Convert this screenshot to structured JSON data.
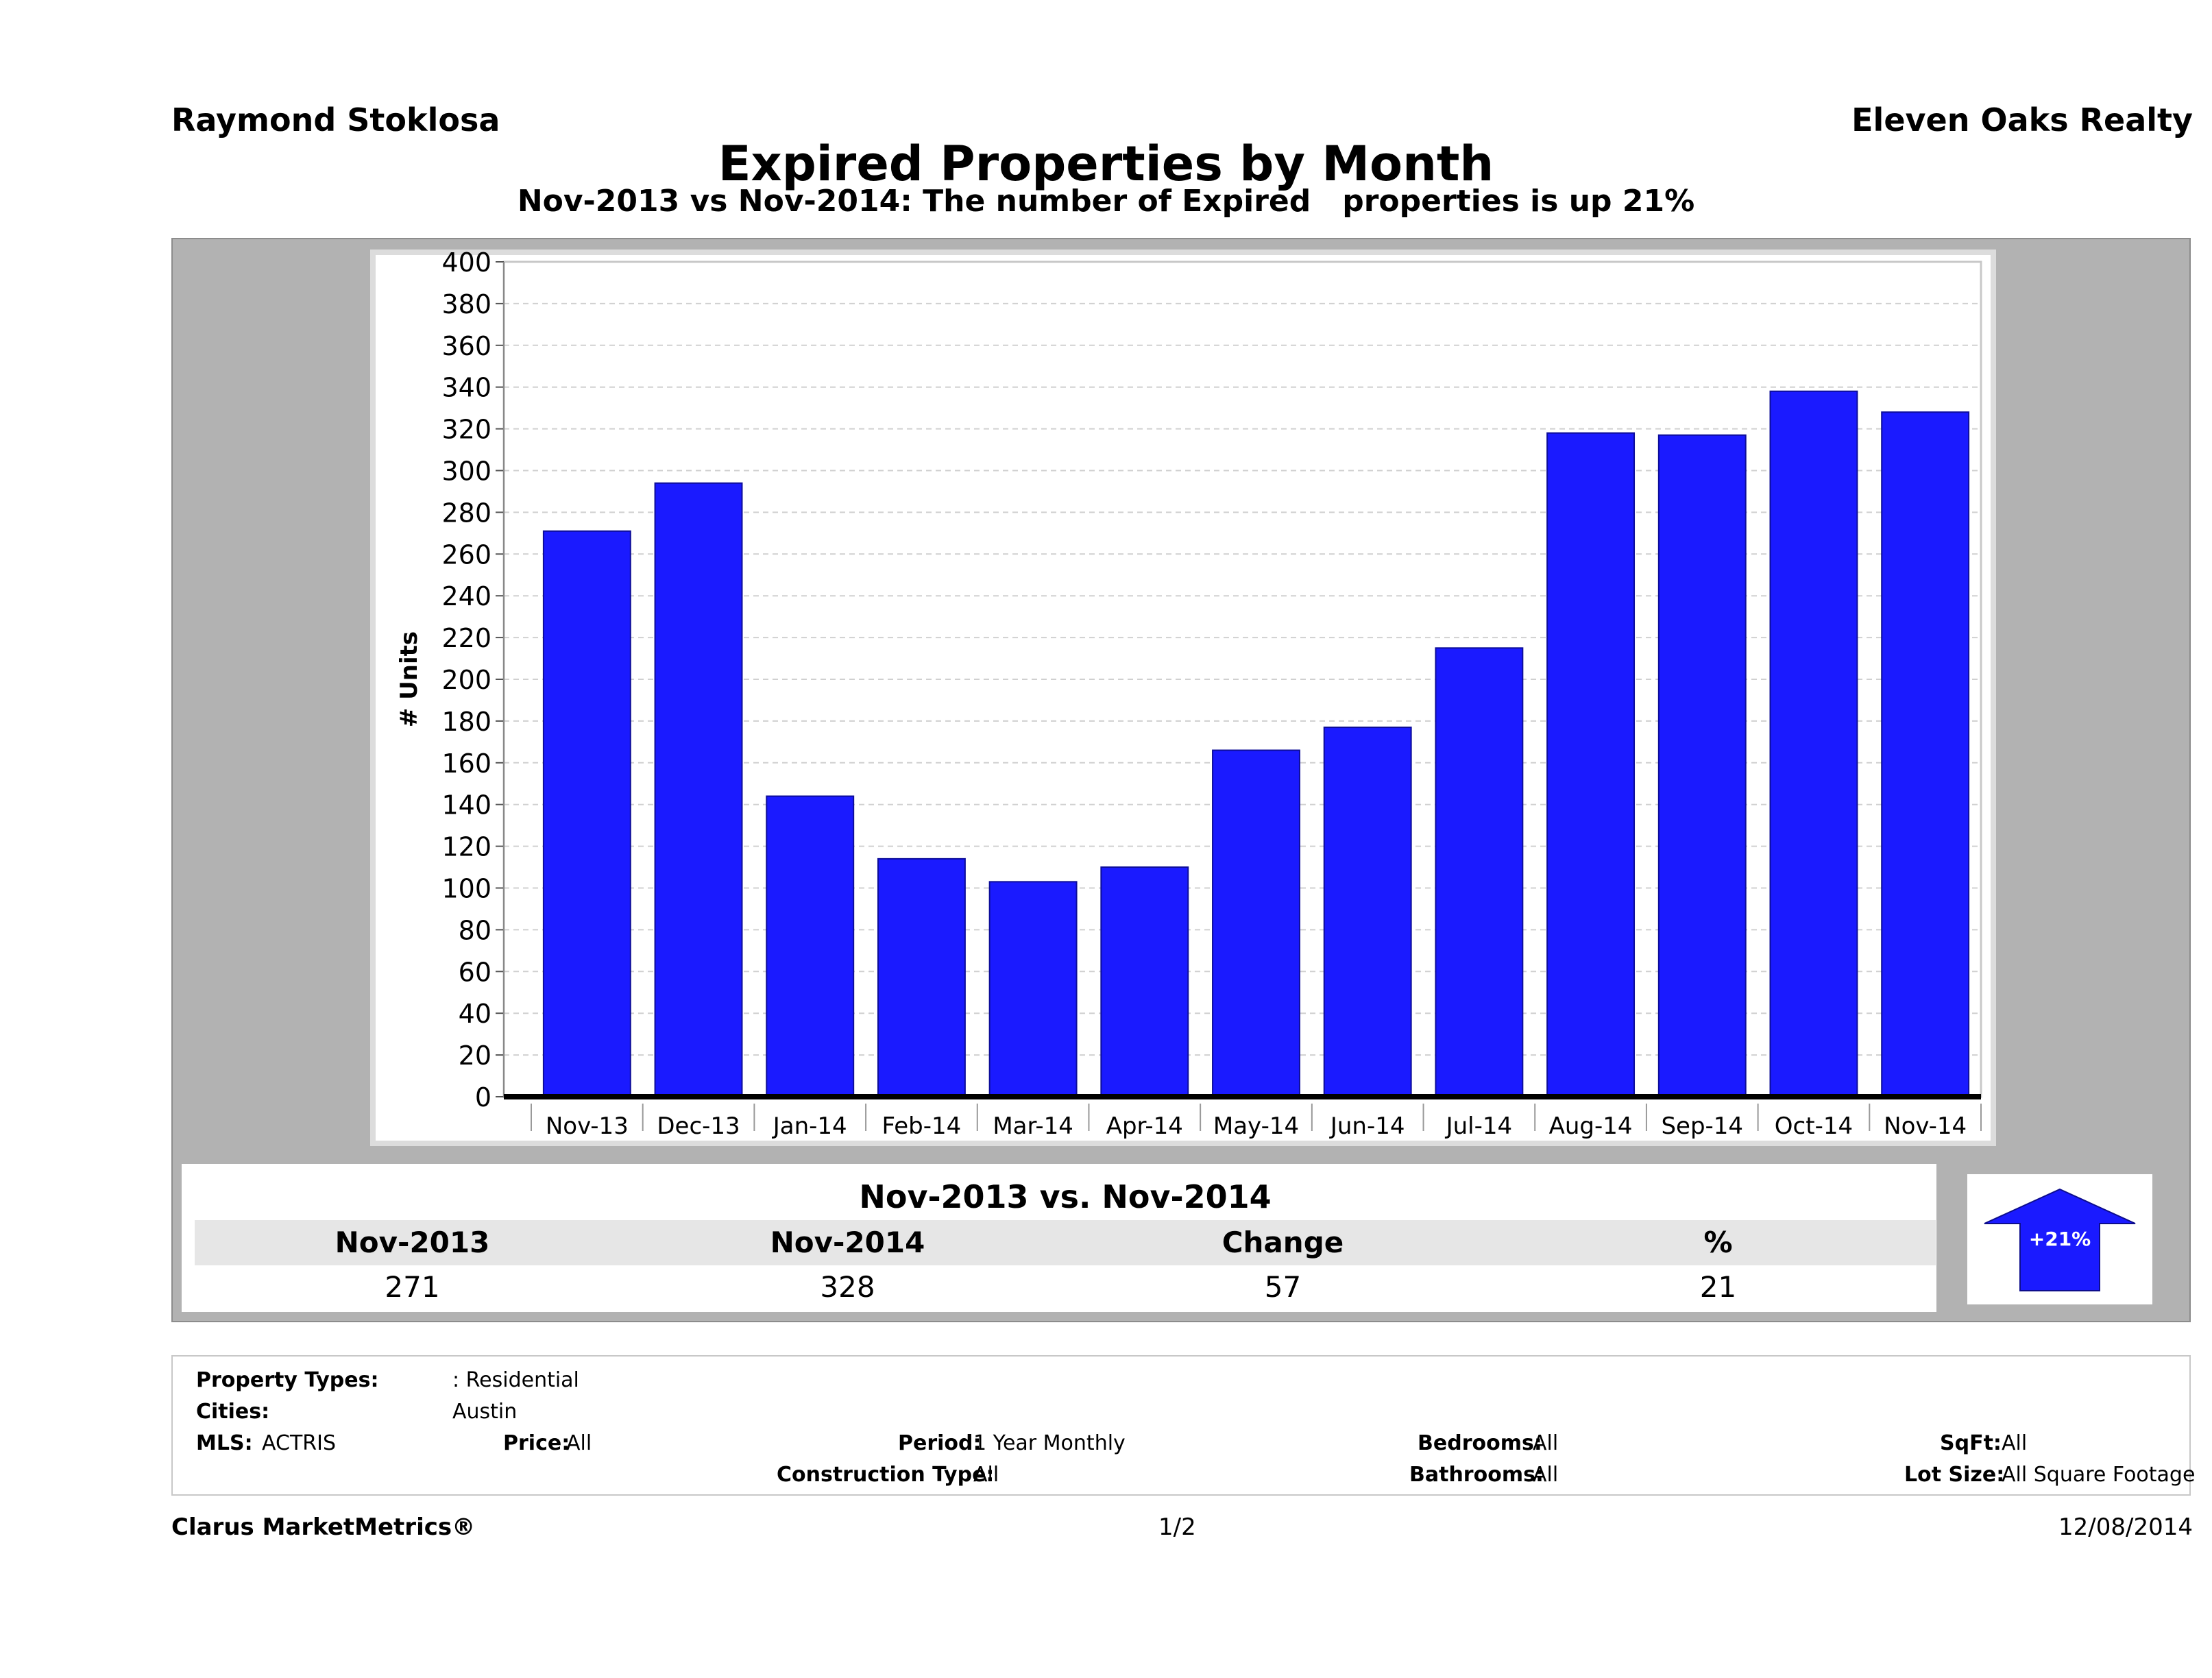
{
  "header": {
    "agent": "Raymond Stoklosa",
    "broker": "Eleven Oaks Realty",
    "title": "Expired Properties by Month",
    "subtitle": "Nov-2013 vs Nov-2014: The number of Expired   properties is up 21%"
  },
  "chart_data": {
    "type": "bar",
    "categories": [
      "Nov-13",
      "Dec-13",
      "Jan-14",
      "Feb-14",
      "Mar-14",
      "Apr-14",
      "May-14",
      "Jun-14",
      "Jul-14",
      "Aug-14",
      "Sep-14",
      "Oct-14",
      "Nov-14"
    ],
    "values": [
      271,
      294,
      144,
      114,
      103,
      110,
      166,
      177,
      215,
      318,
      317,
      338,
      328
    ],
    "ylabel": "# Units",
    "ylim": [
      0,
      400
    ],
    "yticks": [
      0,
      20,
      40,
      60,
      80,
      100,
      120,
      140,
      160,
      180,
      200,
      220,
      240,
      260,
      280,
      300,
      320,
      340,
      360,
      380,
      400
    ],
    "bar_color": "#1a1aff",
    "grid": true
  },
  "comparison": {
    "title": "Nov-2013 vs. Nov-2014",
    "headers": [
      "Nov-2013",
      "Nov-2014",
      "Change",
      "%"
    ],
    "values": [
      "271",
      "328",
      "57",
      "21"
    ],
    "badge": "+21%",
    "arrow_color": "#1a1aff"
  },
  "filters": {
    "property_types_label": "Property Types:",
    "property_types_value": ": Residential",
    "cities_label": "Cities:",
    "cities_value": "Austin",
    "mls_label": "MLS:",
    "mls_value": "ACTRIS",
    "price_label": "Price:",
    "price_value": "All",
    "period_label": "Period:",
    "period_value": "1 Year Monthly",
    "construction_label": "Construction Type:",
    "construction_value": "All",
    "bedrooms_label": "Bedrooms:",
    "bedrooms_value": "All",
    "bathrooms_label": "Bathrooms:",
    "bathrooms_value": "All",
    "sqft_label": "SqFt:",
    "sqft_value": "All",
    "lotsize_label": "Lot Size:",
    "lotsize_value": "All Square Footage"
  },
  "footer": {
    "brand": "Clarus MarketMetrics®",
    "page": "1/2",
    "date": "12/08/2014"
  }
}
